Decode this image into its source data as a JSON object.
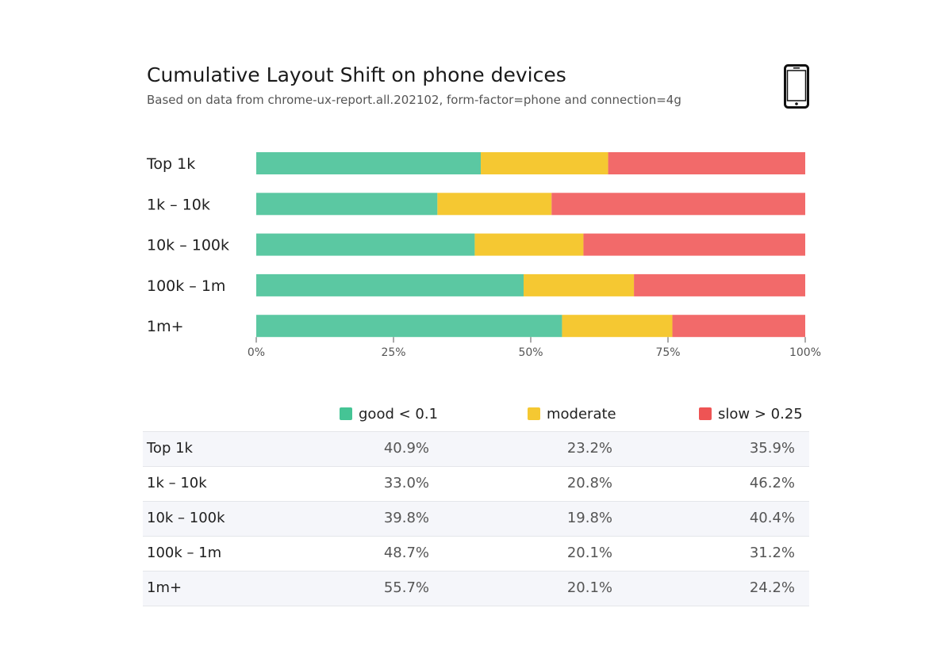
{
  "header": {
    "title": "Cumulative Layout Shift on phone devices",
    "subtitle": "Based on data from chrome-ux-report.all.202102, form-factor=phone and connection=4g"
  },
  "icons": {
    "device": "phone-icon"
  },
  "colors": {
    "good": "#5bc8a2",
    "moderate": "#f5c832",
    "slow": "#f26a6a",
    "legend_slow": "#ee5454",
    "legend_good": "#45c495"
  },
  "chart_data": {
    "type": "bar",
    "stacked": true,
    "orientation": "horizontal",
    "title": "Cumulative Layout Shift on phone devices",
    "categories": [
      "Top 1k",
      "1k – 10k",
      "10k – 100k",
      "100k – 1m",
      "1m+"
    ],
    "series": [
      {
        "name": "good < 0.1",
        "values": [
          40.9,
          33.0,
          39.8,
          48.7,
          55.7
        ]
      },
      {
        "name": "moderate",
        "values": [
          23.2,
          20.8,
          19.8,
          20.1,
          20.1
        ]
      },
      {
        "name": "slow > 0.25",
        "values": [
          35.9,
          46.2,
          40.4,
          31.2,
          24.2
        ]
      }
    ],
    "xlim": [
      0,
      100
    ],
    "xticks": [
      "0%",
      "25%",
      "50%",
      "75%",
      "100%"
    ],
    "legend": "bottom"
  },
  "legend": {
    "good": "good < 0.1",
    "moderate": "moderate",
    "slow": "slow > 0.25"
  },
  "table": {
    "rows": [
      {
        "label": "Top 1k",
        "good": "40.9%",
        "moderate": "23.2%",
        "slow": "35.9%"
      },
      {
        "label": "1k – 10k",
        "good": "33.0%",
        "moderate": "20.8%",
        "slow": "46.2%"
      },
      {
        "label": "10k – 100k",
        "good": "39.8%",
        "moderate": "19.8%",
        "slow": "40.4%"
      },
      {
        "label": "100k – 1m",
        "good": "48.7%",
        "moderate": "20.1%",
        "slow": "31.2%"
      },
      {
        "label": "1m+",
        "good": "55.7%",
        "moderate": "20.1%",
        "slow": "24.2%"
      }
    ]
  }
}
